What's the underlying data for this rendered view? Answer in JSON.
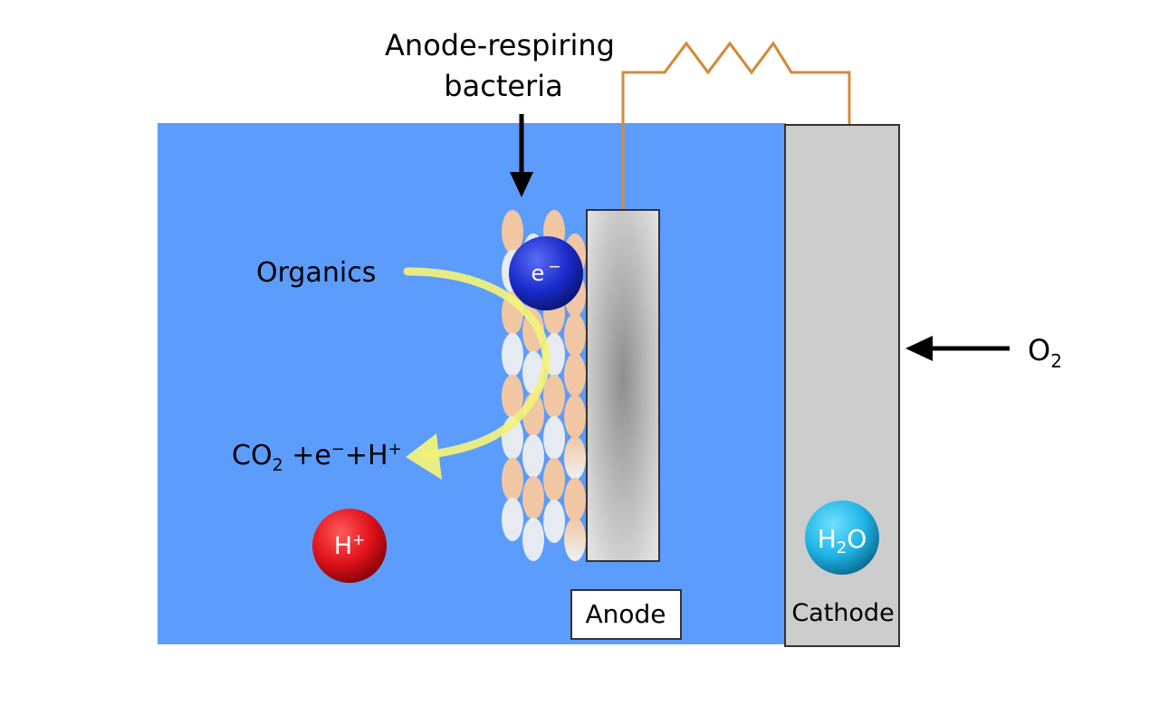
{
  "labels": {
    "bacteria_line1": "Anode-respiring",
    "bacteria_line2": "bacteria",
    "organics": "Organics",
    "products_co": "CO",
    "products_sub": "2",
    "products_rest": " +e",
    "products_sup_minus": "−",
    "products_plus_h": "+H",
    "products_sup_plus": "+",
    "oxygen": "O",
    "oxygen_sub": "2",
    "anode": "Anode",
    "cathode": "Cathode"
  },
  "ions": {
    "electron": "e",
    "electron_sup": "−",
    "proton": "H",
    "proton_sup": "+",
    "water_h": "H",
    "water_sub": "2",
    "water_o": "O"
  },
  "colors": {
    "electrolyte": "#5b9cfc",
    "cathode": "#cccccc",
    "wire": "#d38b3c",
    "organics_arrow": "#f2f27a",
    "bacteria_orange": "#f1c6a2",
    "bacteria_white": "#e6ebf1",
    "electron": "#1a2ccc",
    "proton": "#e0121a",
    "water": "#1fb5e6"
  }
}
